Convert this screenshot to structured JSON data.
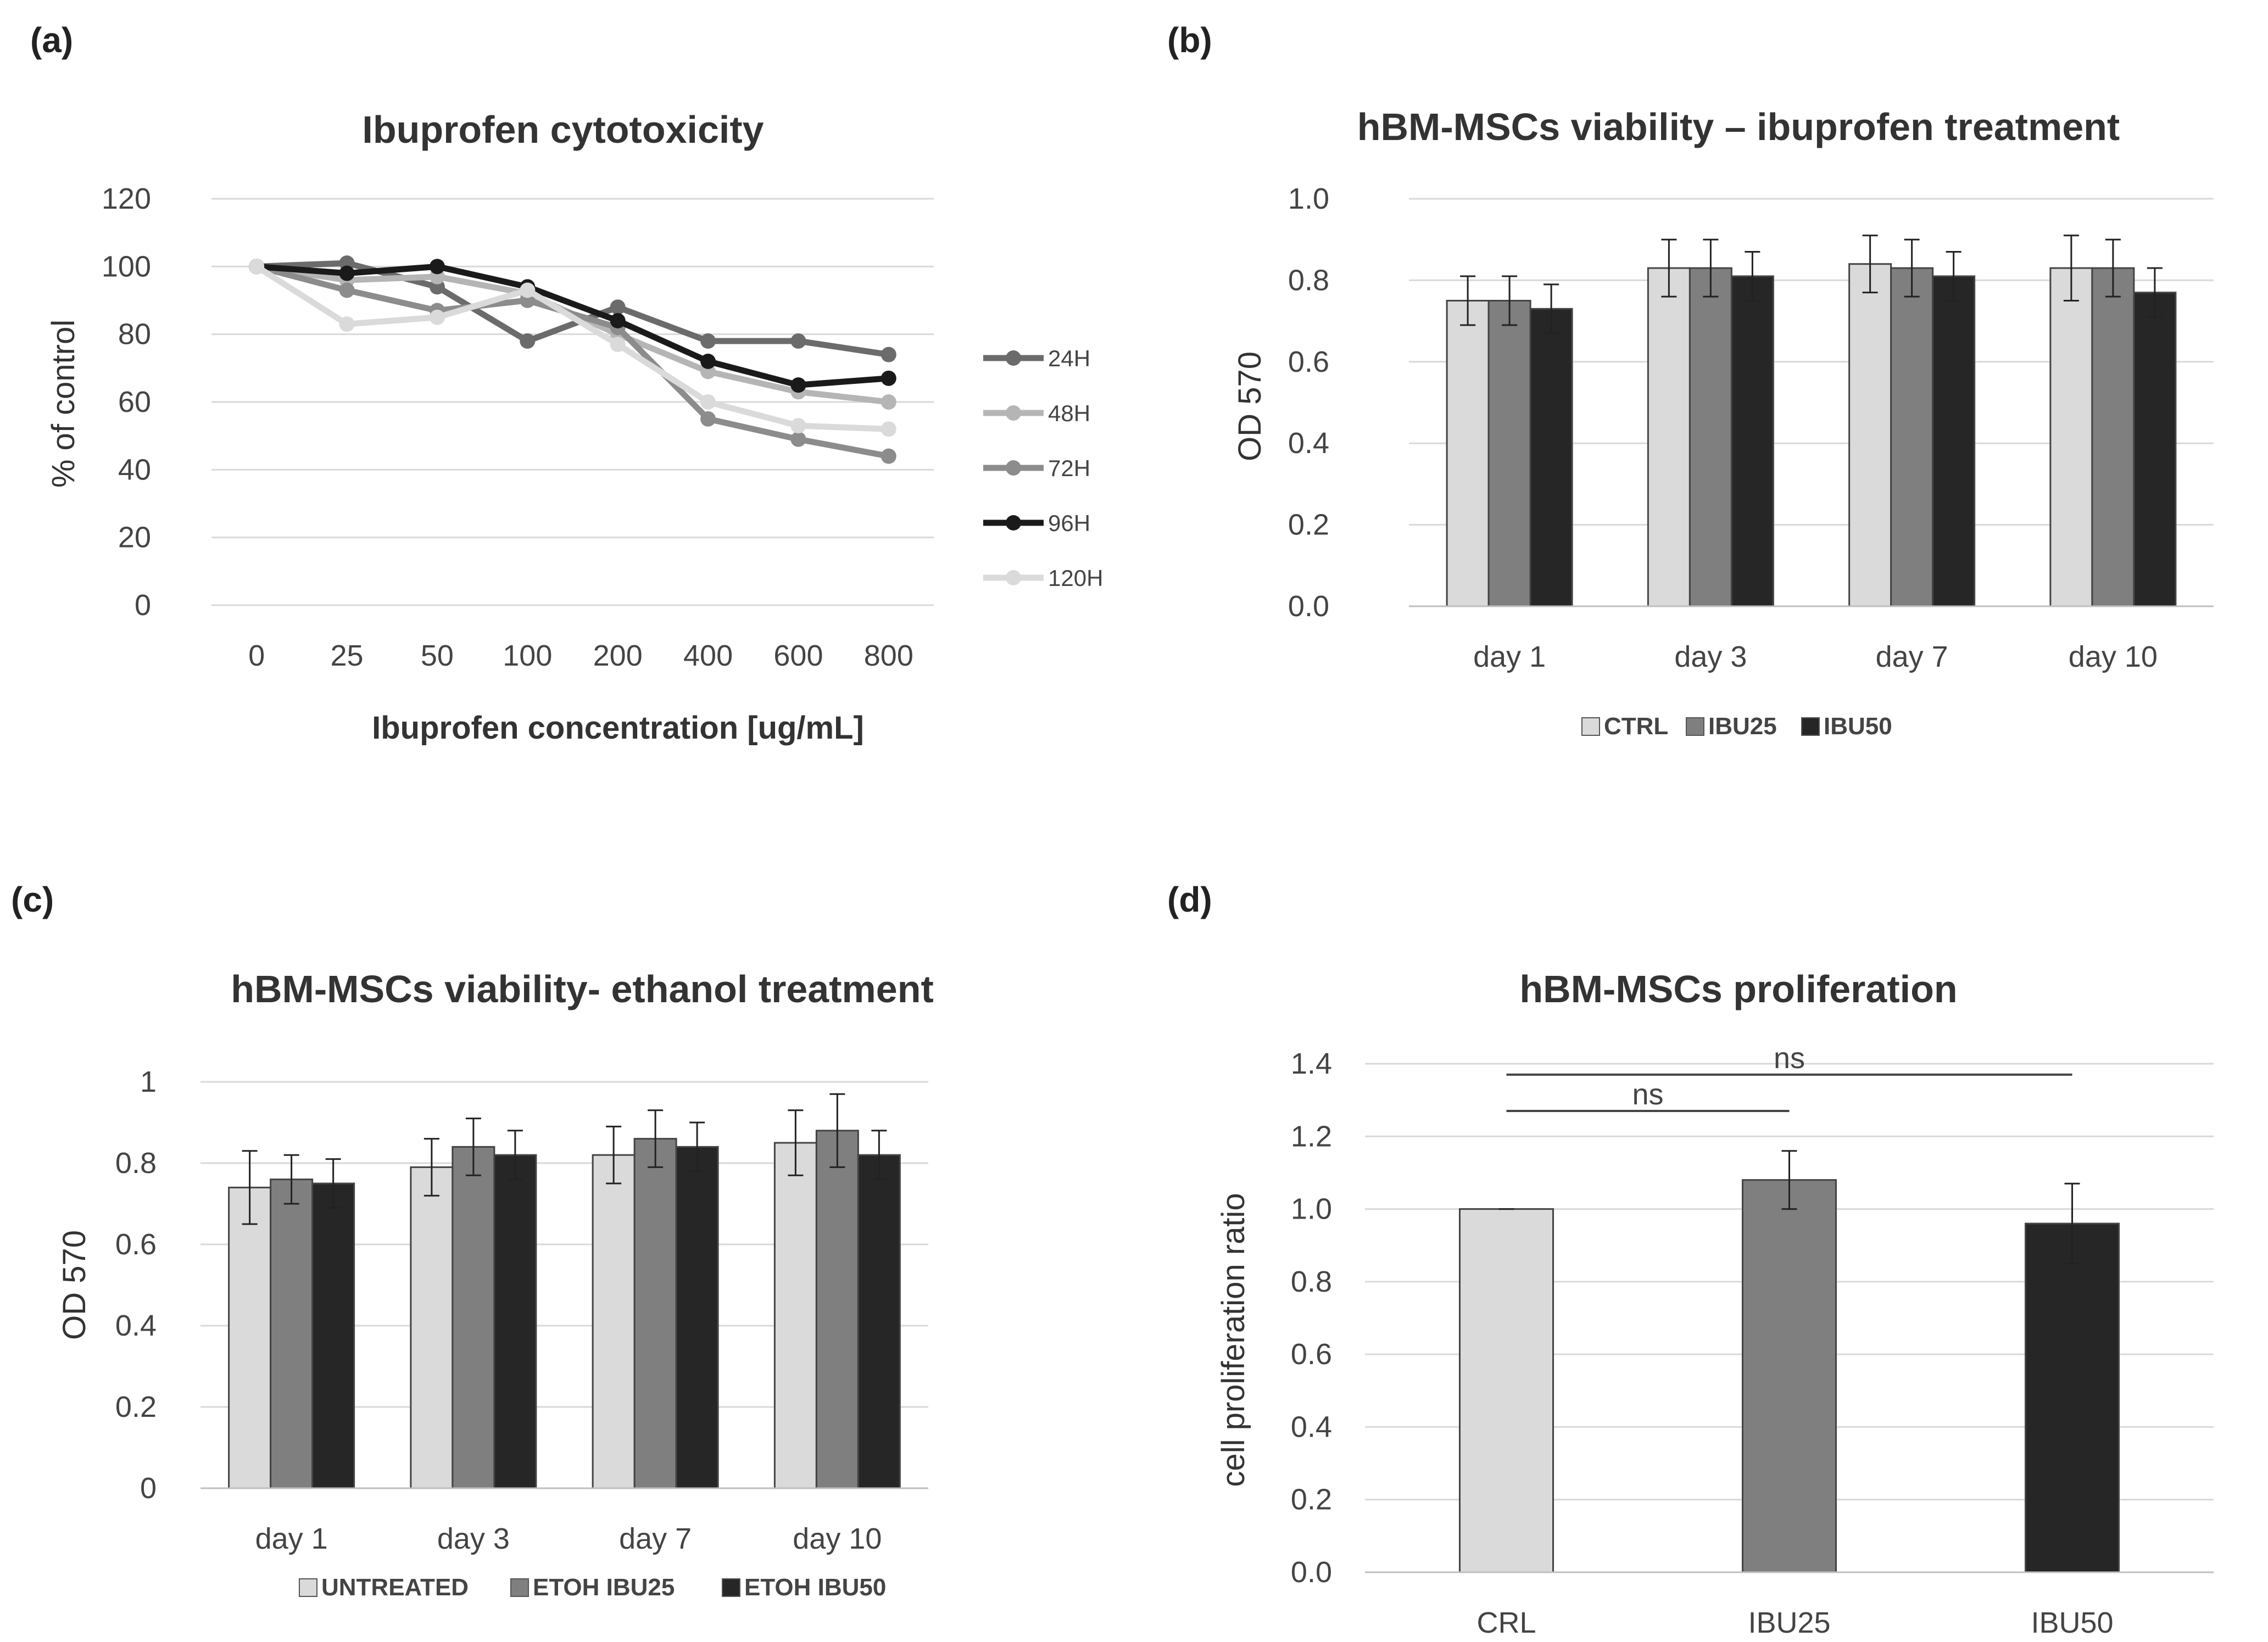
{
  "chart_data": [
    {
      "panel": "(a)",
      "type": "line",
      "title": "Ibuprofen cytotoxicity",
      "xlabel": "Ibuprofen concentration [ug/mL]",
      "ylabel": "% of control",
      "categories": [
        "0",
        "25",
        "50",
        "100",
        "200",
        "400",
        "600",
        "800"
      ],
      "ylim": [
        0,
        120
      ],
      "yticks": [
        0,
        20,
        40,
        60,
        80,
        100,
        120
      ],
      "legend_position": "right",
      "series": [
        {
          "name": "24H",
          "color": "#6b6b6b",
          "values": [
            100,
            101,
            94,
            78,
            88,
            78,
            78,
            74
          ]
        },
        {
          "name": "48H",
          "color": "#b5b5b5",
          "values": [
            100,
            96,
            97,
            92,
            80,
            69,
            63,
            60
          ]
        },
        {
          "name": "72H",
          "color": "#8c8c8c",
          "values": [
            100,
            93,
            87,
            90,
            82,
            55,
            49,
            44
          ]
        },
        {
          "name": "96H",
          "color": "#1a1a1a",
          "values": [
            100,
            98,
            100,
            94,
            84,
            72,
            65,
            67
          ]
        },
        {
          "name": "120H",
          "color": "#dadada",
          "values": [
            100,
            83,
            85,
            93,
            77,
            60,
            53,
            52
          ]
        }
      ]
    },
    {
      "panel": "(b)",
      "type": "bar",
      "title": "hBM-MSCs viability – ibuprofen treatment",
      "xlabel": "",
      "ylabel": "OD 570",
      "categories": [
        "day 1",
        "day 3",
        "day 7",
        "day 10"
      ],
      "ylim": [
        0,
        1.0
      ],
      "yticks": [
        "0.0",
        "0.2",
        "0.4",
        "0.6",
        "0.8",
        "1.0"
      ],
      "legend_position": "bottom",
      "series": [
        {
          "name": "CTRL",
          "color": "#dadada",
          "values": [
            0.75,
            0.83,
            0.84,
            0.83
          ],
          "errors": [
            0.06,
            0.07,
            0.07,
            0.08
          ]
        },
        {
          "name": "IBU25",
          "color": "#7f7f7f",
          "values": [
            0.75,
            0.83,
            0.83,
            0.83
          ],
          "errors": [
            0.06,
            0.07,
            0.07,
            0.07
          ]
        },
        {
          "name": "IBU50",
          "color": "#262626",
          "values": [
            0.73,
            0.81,
            0.81,
            0.77
          ],
          "errors": [
            0.06,
            0.06,
            0.06,
            0.06
          ]
        }
      ]
    },
    {
      "panel": "(c)",
      "type": "bar",
      "title": "hBM-MSCs viability- ethanol treatment",
      "xlabel": "",
      "ylabel": "OD 570",
      "categories": [
        "day 1",
        "day 3",
        "day 7",
        "day 10"
      ],
      "ylim": [
        0,
        1
      ],
      "yticks": [
        "0",
        "0.2",
        "0.4",
        "0.6",
        "0.8",
        "1"
      ],
      "legend_position": "bottom",
      "series": [
        {
          "name": "UNTREATED",
          "color": "#dadada",
          "values": [
            0.74,
            0.79,
            0.82,
            0.85
          ],
          "errors": [
            0.09,
            0.07,
            0.07,
            0.08
          ]
        },
        {
          "name": "ETOH IBU25",
          "color": "#7f7f7f",
          "values": [
            0.76,
            0.84,
            0.86,
            0.88
          ],
          "errors": [
            0.06,
            0.07,
            0.07,
            0.09
          ]
        },
        {
          "name": "ETOH IBU50",
          "color": "#262626",
          "values": [
            0.75,
            0.82,
            0.84,
            0.82
          ],
          "errors": [
            0.06,
            0.06,
            0.06,
            0.06
          ]
        }
      ]
    },
    {
      "panel": "(d)",
      "type": "bar",
      "title": "hBM-MSCs proliferation",
      "xlabel": "",
      "ylabel": "cell proliferation ratio",
      "categories": [
        "CRL",
        "IBU25",
        "IBU50"
      ],
      "ylim": [
        0,
        1.4
      ],
      "yticks": [
        "0.0",
        "0.2",
        "0.4",
        "0.6",
        "0.8",
        "1.0",
        "1.2",
        "1.4"
      ],
      "values": [
        1.0,
        1.08,
        0.96
      ],
      "errors": [
        0.0,
        0.08,
        0.11
      ],
      "colors": [
        "#dadada",
        "#7f7f7f",
        "#262626"
      ],
      "annotations": [
        {
          "text": "ns",
          "from": "CRL",
          "to": "IBU25",
          "y": 1.27
        },
        {
          "text": "ns",
          "from": "CRL",
          "to": "IBU50",
          "y": 1.37
        }
      ]
    }
  ]
}
